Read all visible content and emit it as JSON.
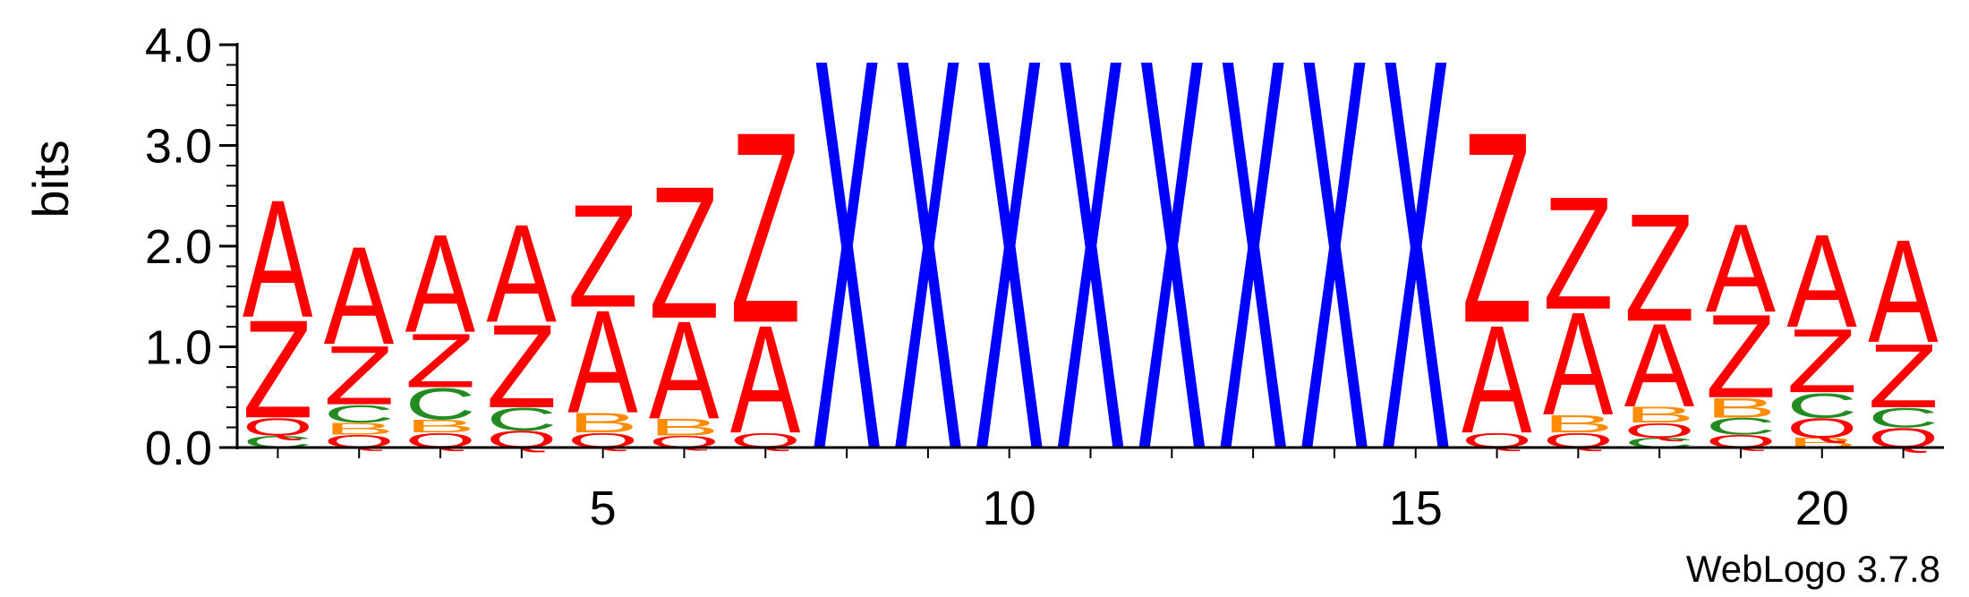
{
  "chart_data": {
    "type": "sequence-logo",
    "title": "",
    "xlabel": "",
    "ylabel": "bits",
    "ylim": [
      0,
      4
    ],
    "y_ticks": [
      "0.0",
      "1.0",
      "2.0",
      "3.0",
      "4.0"
    ],
    "x_ticks": [
      {
        "position": 5,
        "label": "5"
      },
      {
        "position": 10,
        "label": "10"
      },
      {
        "position": 15,
        "label": "15"
      },
      {
        "position": 20,
        "label": "20"
      }
    ],
    "positions": [
      1,
      2,
      3,
      4,
      5,
      6,
      7,
      8,
      9,
      10,
      11,
      12,
      13,
      14,
      15,
      16,
      17,
      18,
      19,
      20,
      21
    ],
    "colors": {
      "A": "#ff0000",
      "Z": "#ff0000",
      "Q": "#ff0000",
      "C": "#228b22",
      "B": "#ff8c00",
      "X": "#0000ff"
    },
    "columns": [
      {
        "position": 1,
        "stack": [
          {
            "letter": "C",
            "bits": 0.12
          },
          {
            "letter": "Q",
            "bits": 0.18
          },
          {
            "letter": "Z",
            "bits": 1.0
          },
          {
            "letter": "A",
            "bits": 1.2
          }
        ]
      },
      {
        "position": 2,
        "stack": [
          {
            "letter": "Q",
            "bits": 0.13
          },
          {
            "letter": "B",
            "bits": 0.12
          },
          {
            "letter": "C",
            "bits": 0.18
          },
          {
            "letter": "Z",
            "bits": 0.6
          },
          {
            "letter": "A",
            "bits": 1.0
          }
        ]
      },
      {
        "position": 3,
        "stack": [
          {
            "letter": "Q",
            "bits": 0.15
          },
          {
            "letter": "B",
            "bits": 0.13
          },
          {
            "letter": "C",
            "bits": 0.32
          },
          {
            "letter": "Z",
            "bits": 0.55
          },
          {
            "letter": "A",
            "bits": 1.0
          }
        ]
      },
      {
        "position": 4,
        "stack": [
          {
            "letter": "Q",
            "bits": 0.17
          },
          {
            "letter": "C",
            "bits": 0.23
          },
          {
            "letter": "Z",
            "bits": 0.85
          },
          {
            "letter": "A",
            "bits": 1.0
          }
        ]
      },
      {
        "position": 5,
        "stack": [
          {
            "letter": "Q",
            "bits": 0.15
          },
          {
            "letter": "B",
            "bits": 0.2
          },
          {
            "letter": "A",
            "bits": 1.05
          },
          {
            "letter": "Z",
            "bits": 1.05
          }
        ]
      },
      {
        "position": 6,
        "stack": [
          {
            "letter": "Q",
            "bits": 0.12
          },
          {
            "letter": "B",
            "bits": 0.17
          },
          {
            "letter": "A",
            "bits": 1.0
          },
          {
            "letter": "Z",
            "bits": 1.35
          }
        ]
      },
      {
        "position": 7,
        "stack": [
          {
            "letter": "Q",
            "bits": 0.15
          },
          {
            "letter": "A",
            "bits": 1.1
          },
          {
            "letter": "Z",
            "bits": 1.95
          }
        ]
      },
      {
        "position": 8,
        "stack": [
          {
            "letter": "X",
            "bits": 4.0
          }
        ]
      },
      {
        "position": 9,
        "stack": [
          {
            "letter": "X",
            "bits": 4.0
          }
        ]
      },
      {
        "position": 10,
        "stack": [
          {
            "letter": "X",
            "bits": 4.0
          }
        ]
      },
      {
        "position": 11,
        "stack": [
          {
            "letter": "X",
            "bits": 4.0
          }
        ]
      },
      {
        "position": 12,
        "stack": [
          {
            "letter": "X",
            "bits": 4.0
          }
        ]
      },
      {
        "position": 13,
        "stack": [
          {
            "letter": "X",
            "bits": 4.0
          }
        ]
      },
      {
        "position": 14,
        "stack": [
          {
            "letter": "X",
            "bits": 4.0
          }
        ]
      },
      {
        "position": 15,
        "stack": [
          {
            "letter": "X",
            "bits": 4.0
          }
        ]
      },
      {
        "position": 16,
        "stack": [
          {
            "letter": "Q",
            "bits": 0.15
          },
          {
            "letter": "A",
            "bits": 1.1
          },
          {
            "letter": "Z",
            "bits": 1.95
          }
        ]
      },
      {
        "position": 17,
        "stack": [
          {
            "letter": "Q",
            "bits": 0.15
          },
          {
            "letter": "B",
            "bits": 0.18
          },
          {
            "letter": "A",
            "bits": 1.05
          },
          {
            "letter": "Z",
            "bits": 1.15
          }
        ]
      },
      {
        "position": 18,
        "stack": [
          {
            "letter": "C",
            "bits": 0.1
          },
          {
            "letter": "Q",
            "bits": 0.15
          },
          {
            "letter": "B",
            "bits": 0.16
          },
          {
            "letter": "A",
            "bits": 0.85
          },
          {
            "letter": "Z",
            "bits": 1.1
          }
        ]
      },
      {
        "position": 19,
        "stack": [
          {
            "letter": "Q",
            "bits": 0.13
          },
          {
            "letter": "C",
            "bits": 0.17
          },
          {
            "letter": "B",
            "bits": 0.2
          },
          {
            "letter": "Z",
            "bits": 0.85
          },
          {
            "letter": "A",
            "bits": 0.9
          }
        ]
      },
      {
        "position": 20,
        "stack": [
          {
            "letter": "B",
            "bits": 0.1
          },
          {
            "letter": "Q",
            "bits": 0.2
          },
          {
            "letter": "C",
            "bits": 0.25
          },
          {
            "letter": "Z",
            "bits": 0.65
          },
          {
            "letter": "A",
            "bits": 0.95
          }
        ]
      },
      {
        "position": 21,
        "stack": [
          {
            "letter": "Q",
            "bits": 0.2
          },
          {
            "letter": "C",
            "bits": 0.2
          },
          {
            "letter": "Z",
            "bits": 0.65
          },
          {
            "letter": "A",
            "bits": 1.05
          }
        ]
      }
    ]
  },
  "footer": {
    "credit": "WebLogo 3.7.8"
  }
}
